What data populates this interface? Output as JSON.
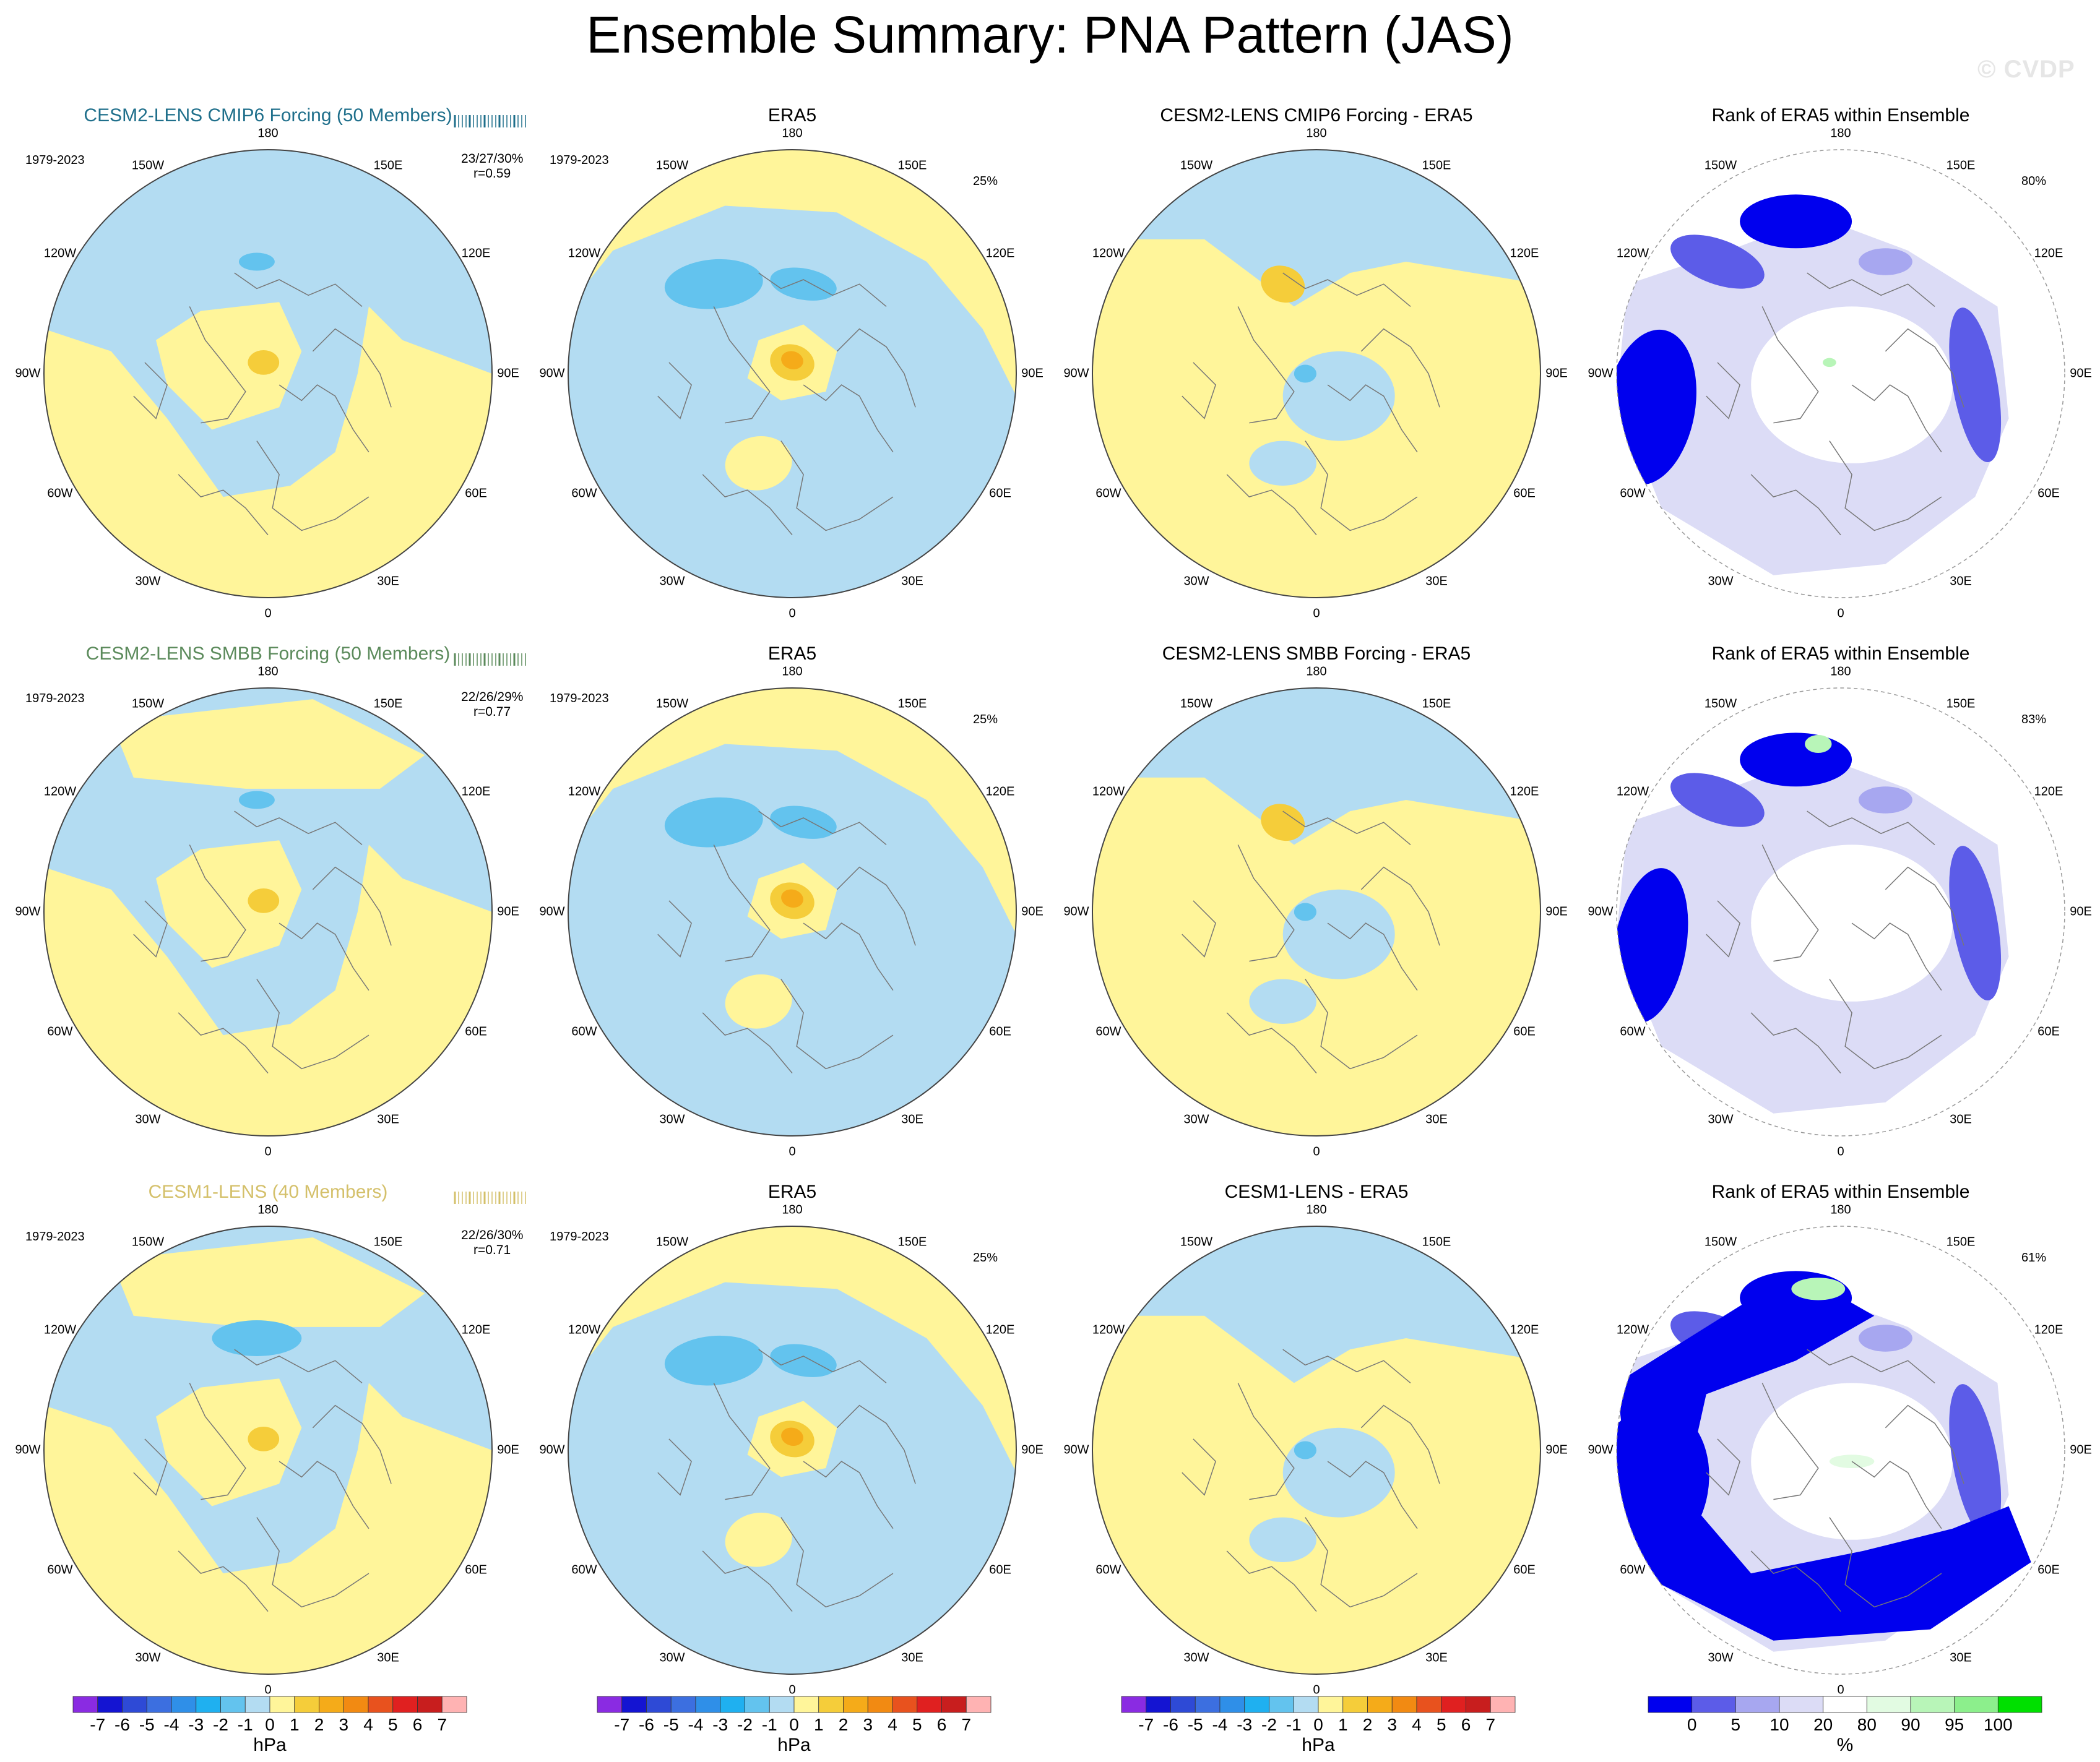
{
  "figure": {
    "title": "Ensemble Summary: PNA Pattern (JAS)",
    "watermark": "© CVDP"
  },
  "chart_data": {
    "type": "heatmap",
    "projection": "north-polar-stereographic",
    "lon_labels": [
      "180",
      "150E",
      "120E",
      "90E",
      "60E",
      "30E",
      "0",
      "30W",
      "60W",
      "90W",
      "120W",
      "150W"
    ],
    "rows": [
      {
        "model": {
          "title": "CESM2-LENS CMIP6 Forcing (50 Members)",
          "color": "#1f6f8b",
          "period": "1979-2023",
          "stats": "23/27/30%",
          "r": "r=0.59"
        },
        "obs": {
          "title": "ERA5",
          "period": "1979-2023",
          "pct": "25%"
        },
        "diff": {
          "title": "CESM2-LENS CMIP6 Forcing - ERA5"
        },
        "rank": {
          "title": "Rank of ERA5 within Ensemble",
          "pct": "80%"
        }
      },
      {
        "model": {
          "title": "CESM2-LENS SMBB Forcing (50 Members)",
          "color": "#5b8a5b",
          "period": "1979-2023",
          "stats": "22/26/29%",
          "r": "r=0.77"
        },
        "obs": {
          "title": "ERA5",
          "period": "1979-2023",
          "pct": "25%"
        },
        "diff": {
          "title": "CESM2-LENS SMBB Forcing - ERA5"
        },
        "rank": {
          "title": "Rank of ERA5 within Ensemble",
          "pct": "83%"
        }
      },
      {
        "model": {
          "title": "CESM1-LENS (40 Members)",
          "color": "#d4c06a",
          "period": "1979-2023",
          "stats": "22/26/30%",
          "r": "r=0.71"
        },
        "obs": {
          "title": "ERA5",
          "period": "1979-2023",
          "pct": "25%"
        },
        "diff": {
          "title": "CESM1-LENS - ERA5"
        },
        "rank": {
          "title": "Rank of ERA5 within Ensemble",
          "pct": "61%"
        }
      }
    ],
    "colorbar_hpa": {
      "unit": "hPa",
      "ticks": [
        "-7",
        "-6",
        "-5",
        "-4",
        "-3",
        "-2",
        "-1",
        "0",
        "1",
        "2",
        "3",
        "4",
        "5",
        "6",
        "7"
      ],
      "colors": [
        "#8a2be2",
        "#1414d2",
        "#2e4ad6",
        "#3c6fe0",
        "#2f8fe8",
        "#1fb0f0",
        "#63c3ee",
        "#b3dcf2",
        "#fff59a",
        "#f5cd3a",
        "#f5ab19",
        "#f28a12",
        "#e8521e",
        "#e02020",
        "#c81e1e",
        "#ffb3b3"
      ]
    },
    "colorbar_rank": {
      "unit": "%",
      "ticks": [
        "0",
        "5",
        "10",
        "20",
        "80",
        "90",
        "95",
        "100"
      ],
      "colors": [
        "#0000ee",
        "#5c5ce8",
        "#a7a7f0",
        "#dcdcf6",
        "#ffffff",
        "#e2fbe2",
        "#b8f5b8",
        "#8cef8c",
        "#00e000"
      ]
    }
  }
}
